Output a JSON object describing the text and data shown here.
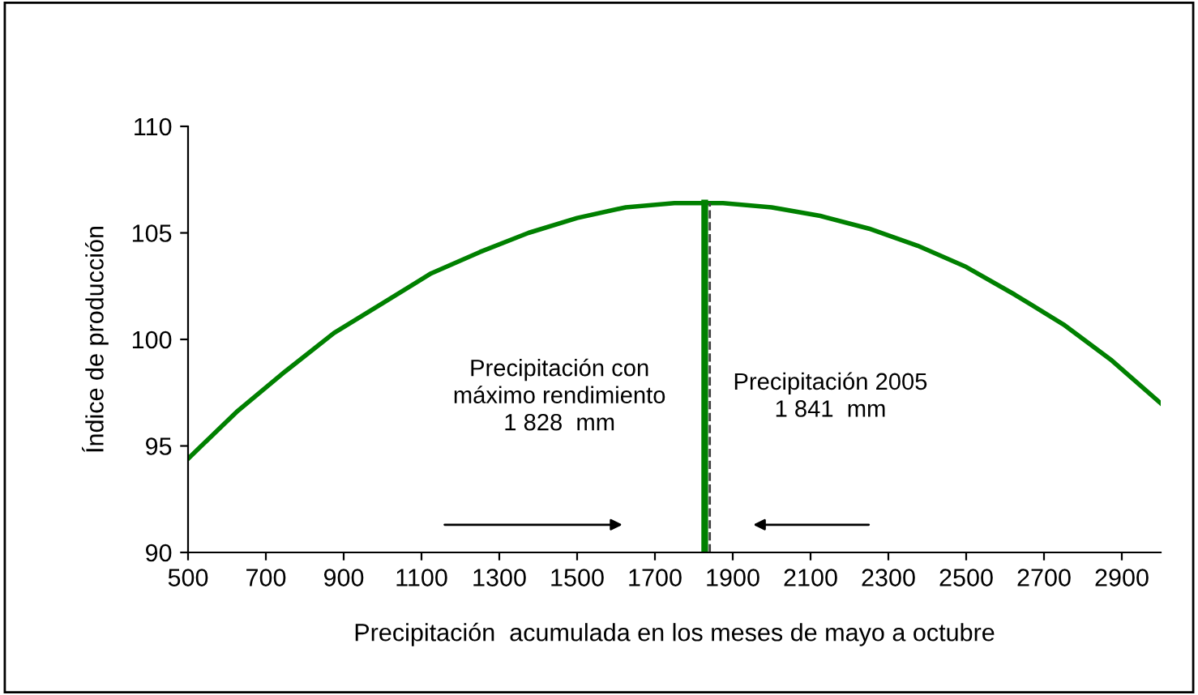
{
  "chart_data": {
    "type": "line",
    "xlabel": "Precipitación  acumulada en los meses de mayo a octubre",
    "ylabel": "Índice de producción",
    "x": [
      500,
      625,
      750,
      875,
      1000,
      1125,
      1250,
      1375,
      1500,
      1625,
      1750,
      1875,
      2000,
      2125,
      2250,
      2375,
      2500,
      2625,
      2750,
      2875,
      3000
    ],
    "series": [
      {
        "color": "#008000",
        "values": [
          94.4,
          96.6,
          98.5,
          100.3,
          101.7,
          103.1,
          104.1,
          105.0,
          105.7,
          106.2,
          106.4,
          106.4,
          106.2,
          105.8,
          105.2,
          104.4,
          103.4,
          102.1,
          100.7,
          99.0,
          97.0
        ]
      }
    ],
    "xlim": [
      500,
      3000
    ],
    "xticks": [
      500,
      700,
      900,
      1100,
      1300,
      1500,
      1700,
      1900,
      2100,
      2300,
      2500,
      2700,
      2900
    ],
    "ylim": [
      90,
      110
    ],
    "yticks": [
      90,
      95,
      100,
      105,
      110
    ],
    "ref_lines": [
      {
        "axis": "x",
        "value": 1828,
        "label": "Precipitación con\nmáximo rendimiento\n1 828  mm",
        "color": "#008000",
        "line_style": "solid"
      },
      {
        "axis": "x",
        "value": 1841,
        "label": "Precipitación 2005\n1 841  mm",
        "color": "#404040",
        "line_style": "dashed"
      }
    ],
    "grid": false,
    "marker": "none",
    "line_style": "solid"
  }
}
